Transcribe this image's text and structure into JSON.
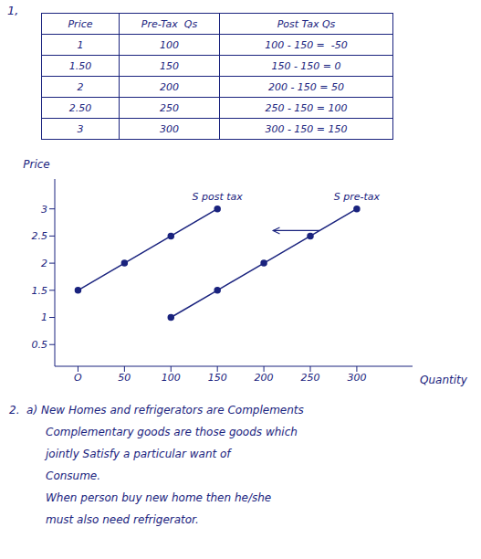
{
  "chart_data": {
    "type": "line",
    "title": "1,",
    "x_label": "Quantity",
    "y_label": "Price",
    "xlim": [
      -25,
      360
    ],
    "ylim": [
      0.1,
      3.55
    ],
    "xticks": [
      {
        "value": 0,
        "label": "O"
      },
      50,
      100,
      150,
      200,
      250,
      300
    ],
    "yticks": [
      0.5,
      1,
      1.5,
      2,
      2.5,
      3
    ],
    "series": [
      {
        "name": "S pre-tax",
        "color": "#1a237e",
        "marker": "circle",
        "x": [
          100,
          150,
          200,
          250,
          300
        ],
        "values": [
          1.0,
          1.5,
          2.0,
          2.5,
          3.0
        ]
      },
      {
        "name": "S post tax",
        "color": "#1a237e",
        "marker": "circle",
        "x": [
          0,
          50,
          100,
          150
        ],
        "values": [
          1.5,
          2.0,
          2.5,
          3.0
        ]
      }
    ],
    "arrows": [
      {
        "x_start": 260,
        "x_end": 210,
        "y": 2.6
      }
    ],
    "table": {
      "headers": [
        "Price",
        "Pre-Tax  Qs",
        "Post Tax Qs"
      ],
      "rows": [
        [
          "1",
          "100",
          "100 - 150 =  -50"
        ],
        [
          "1.50",
          "150",
          "150 - 150 = 0"
        ],
        [
          "2",
          "200",
          "200 - 150 = 50"
        ],
        [
          "2.50",
          "250",
          "250 - 150 = 100"
        ],
        [
          "3",
          "300",
          "300 - 150 = 150"
        ]
      ]
    },
    "text": [
      "2.  a) New Homes and refrigerators are Complements",
      "Complementary goods are those goods which",
      "jointly Satisfy a particular want of",
      "Consume.",
      "When person buy new home then he/she",
      "must also need refrigerator."
    ]
  }
}
